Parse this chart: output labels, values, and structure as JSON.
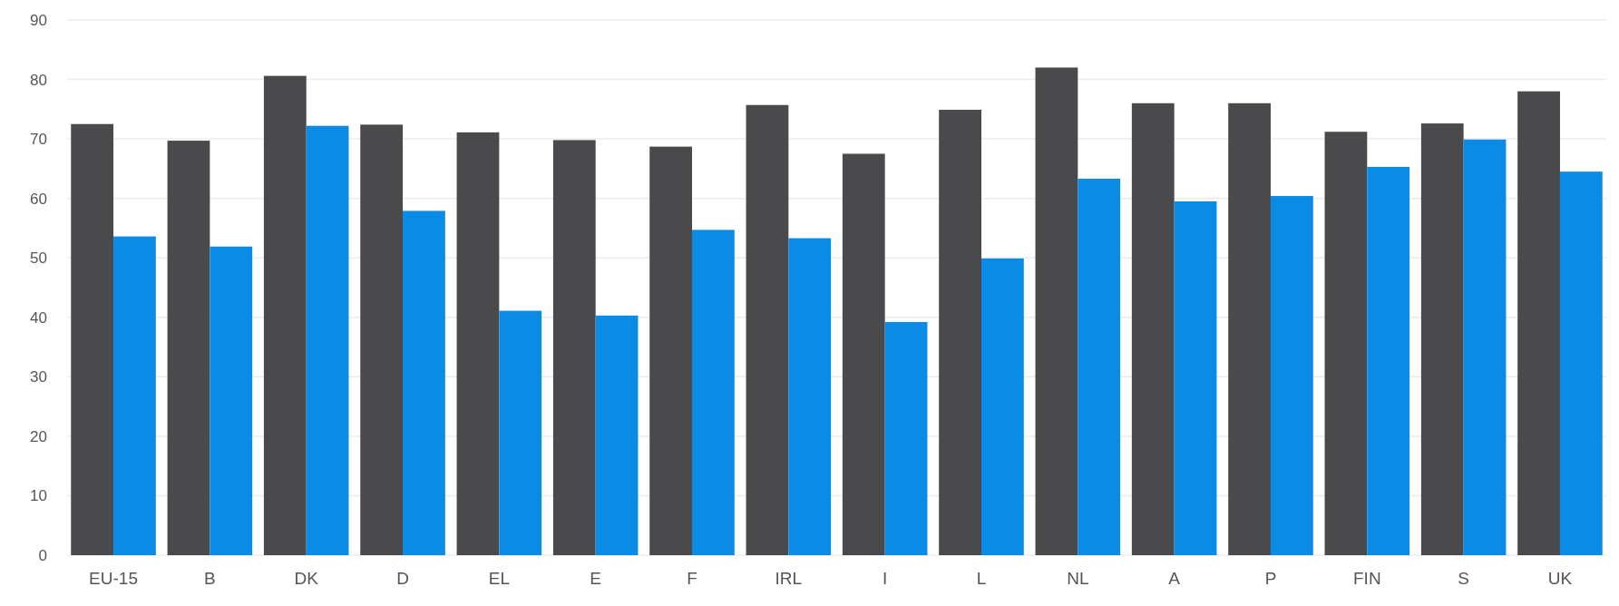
{
  "chart_data": {
    "type": "bar",
    "categories": [
      "EU-15",
      "B",
      "DK",
      "D",
      "EL",
      "E",
      "F",
      "IRL",
      "I",
      "L",
      "NL",
      "A",
      "P",
      "FIN",
      "S",
      "UK"
    ],
    "series": [
      {
        "color": "#4a4a4c",
        "values": [
          72.5,
          69.7,
          80.6,
          72.4,
          71.1,
          69.8,
          68.7,
          75.7,
          67.5,
          74.9,
          82.0,
          76.0,
          76.0,
          71.2,
          72.6,
          78.0
        ]
      },
      {
        "color": "#0a8be6",
        "values": [
          53.6,
          51.9,
          72.2,
          57.9,
          41.1,
          40.3,
          54.7,
          53.3,
          39.2,
          49.9,
          63.3,
          59.5,
          60.4,
          65.3,
          69.9,
          64.5
        ]
      }
    ],
    "ylim": [
      0,
      90
    ],
    "yticks": [
      0,
      10,
      20,
      30,
      40,
      50,
      60,
      70,
      80,
      90
    ],
    "grid": "y"
  }
}
